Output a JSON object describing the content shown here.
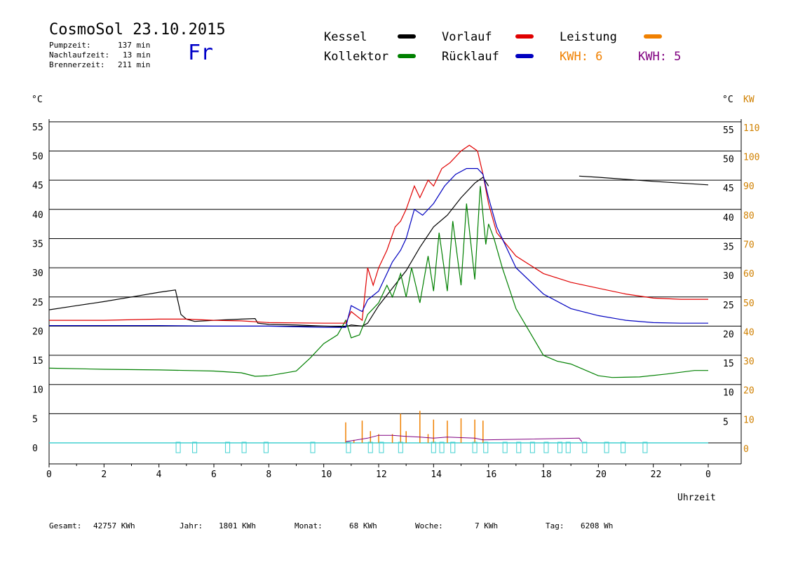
{
  "header": {
    "title": "CosmoSol 23.10.2015",
    "day": "Fr",
    "stats": [
      {
        "label": "Pumpzeit:",
        "value": "137 min"
      },
      {
        "label": "Nachlaufzeit:",
        "value": "13 min"
      },
      {
        "label": "Brennerzeit:",
        "value": "211 min"
      }
    ]
  },
  "legend": {
    "kessel": "Kessel",
    "kollektor": "Kollektor",
    "vorlauf": "Vorlauf",
    "ruecklauf": "Rücklauf",
    "leistung": "Leistung",
    "kwh1": "KWH: 6",
    "kwh2": "KWH: 5"
  },
  "colors": {
    "kessel": "#000000",
    "kollektor": "#008000",
    "vorlauf": "#e00000",
    "ruecklauf": "#0000c0",
    "leistung": "#f08000",
    "kwh2": "#800080",
    "pump": "#40d0d0",
    "grid": "#000000"
  },
  "chart_data": {
    "type": "line",
    "xlabel": "Uhrzeit",
    "left_unit": "°C",
    "right_unit_c": "°C",
    "right_unit_kw": "KW",
    "xlim": [
      0,
      24
    ],
    "ylim": [
      0,
      55
    ],
    "x_ticks": [
      "0",
      "2",
      "4",
      "6",
      "8",
      "10",
      "12",
      "14",
      "16",
      "18",
      "20",
      "22",
      "0"
    ],
    "y_ticks_left": [
      "0",
      "5",
      "10",
      "15",
      "20",
      "25",
      "30",
      "35",
      "40",
      "45",
      "50",
      "55"
    ],
    "y_ticks_right_c": [
      "5",
      "10",
      "15",
      "20",
      "25",
      "30",
      "35",
      "40",
      "45",
      "50",
      "55"
    ],
    "y_ticks_right_kw": [
      "0",
      "10",
      "20",
      "30",
      "40",
      "50",
      "60",
      "70",
      "80",
      "90",
      "100",
      "110"
    ],
    "series": [
      {
        "name": "Kessel",
        "key": "kessel",
        "points": [
          [
            0,
            22.8
          ],
          [
            1,
            23.5
          ],
          [
            2,
            24.2
          ],
          [
            3,
            25
          ],
          [
            4,
            25.8
          ],
          [
            4.6,
            26.2
          ],
          [
            4.8,
            22
          ],
          [
            5,
            21.2
          ],
          [
            5.3,
            20.8
          ],
          [
            6,
            21
          ],
          [
            7,
            21.2
          ],
          [
            7.5,
            21.3
          ],
          [
            7.6,
            20.5
          ],
          [
            8,
            20.3
          ],
          [
            9,
            20.2
          ],
          [
            10,
            20
          ],
          [
            10.8,
            19.9
          ],
          [
            11,
            20.2
          ],
          [
            11.4,
            20
          ],
          [
            11.6,
            20.5
          ],
          [
            12,
            23.5
          ],
          [
            12.5,
            26.5
          ],
          [
            13,
            29.5
          ],
          [
            13.5,
            33.5
          ],
          [
            14,
            37
          ],
          [
            14.5,
            39
          ],
          [
            15,
            42
          ],
          [
            15.5,
            44.5
          ],
          [
            15.8,
            45.5
          ],
          [
            16,
            44
          ],
          [
            16,
            null
          ],
          [
            19.3,
            45.7
          ],
          [
            20,
            45.5
          ],
          [
            22,
            44.8
          ],
          [
            24,
            44.2
          ]
        ]
      },
      {
        "name": "Kollektor",
        "key": "kollektor",
        "points": [
          [
            0,
            12.8
          ],
          [
            2,
            12.6
          ],
          [
            4,
            12.5
          ],
          [
            6,
            12.3
          ],
          [
            7,
            12
          ],
          [
            7.5,
            11.4
          ],
          [
            8,
            11.5
          ],
          [
            9,
            12.3
          ],
          [
            9.5,
            14.5
          ],
          [
            10,
            17
          ],
          [
            10.5,
            18.5
          ],
          [
            10.8,
            21
          ],
          [
            11,
            18
          ],
          [
            11.3,
            18.5
          ],
          [
            11.6,
            22
          ],
          [
            11.8,
            23
          ],
          [
            12,
            24
          ],
          [
            12.3,
            27
          ],
          [
            12.5,
            25
          ],
          [
            12.8,
            29
          ],
          [
            13,
            25
          ],
          [
            13.2,
            30
          ],
          [
            13.5,
            24
          ],
          [
            13.8,
            32
          ],
          [
            14,
            26
          ],
          [
            14.2,
            36
          ],
          [
            14.5,
            26
          ],
          [
            14.7,
            38
          ],
          [
            15,
            27
          ],
          [
            15.2,
            41
          ],
          [
            15.5,
            28
          ],
          [
            15.7,
            44
          ],
          [
            15.9,
            34
          ],
          [
            16,
            37.5
          ],
          [
            16.2,
            35
          ],
          [
            16.5,
            30
          ],
          [
            17,
            23
          ],
          [
            17.5,
            19
          ],
          [
            18,
            15
          ],
          [
            18.5,
            14
          ],
          [
            19,
            13.5
          ],
          [
            20,
            11.5
          ],
          [
            20.5,
            11.2
          ],
          [
            21.5,
            11.3
          ],
          [
            22.5,
            11.8
          ],
          [
            23.5,
            12.4
          ],
          [
            24,
            12.4
          ]
        ]
      },
      {
        "name": "Vorlauf",
        "key": "vorlauf",
        "points": [
          [
            0,
            21
          ],
          [
            2,
            21
          ],
          [
            4,
            21.2
          ],
          [
            5,
            21.2
          ],
          [
            6,
            21
          ],
          [
            7,
            20.9
          ],
          [
            8,
            20.6
          ],
          [
            10,
            20.5
          ],
          [
            10.8,
            20.5
          ],
          [
            11,
            22.5
          ],
          [
            11.4,
            21
          ],
          [
            11.6,
            30
          ],
          [
            11.8,
            27
          ],
          [
            12,
            30
          ],
          [
            12.3,
            33
          ],
          [
            12.6,
            37
          ],
          [
            12.8,
            38
          ],
          [
            13,
            40
          ],
          [
            13.3,
            44
          ],
          [
            13.5,
            42
          ],
          [
            13.8,
            45
          ],
          [
            14,
            44
          ],
          [
            14.3,
            47
          ],
          [
            14.6,
            48
          ],
          [
            15,
            50
          ],
          [
            15.3,
            51
          ],
          [
            15.6,
            50
          ],
          [
            15.8,
            46
          ],
          [
            16,
            41
          ],
          [
            16.3,
            36
          ],
          [
            17,
            32
          ],
          [
            18,
            29
          ],
          [
            19,
            27.5
          ],
          [
            20,
            26.5
          ],
          [
            21,
            25.5
          ],
          [
            22,
            24.8
          ],
          [
            23,
            24.6
          ],
          [
            24,
            24.6
          ]
        ]
      },
      {
        "name": "Rücklauf",
        "key": "ruecklauf",
        "points": [
          [
            0,
            20.1
          ],
          [
            2,
            20.1
          ],
          [
            4,
            20.1
          ],
          [
            6,
            20
          ],
          [
            8,
            20
          ],
          [
            10,
            19.8
          ],
          [
            10.8,
            19.8
          ],
          [
            11,
            23.5
          ],
          [
            11.4,
            22.5
          ],
          [
            11.6,
            24.5
          ],
          [
            12,
            26
          ],
          [
            12.5,
            31
          ],
          [
            12.8,
            33
          ],
          [
            13,
            35
          ],
          [
            13.3,
            40
          ],
          [
            13.6,
            39
          ],
          [
            14,
            41
          ],
          [
            14.4,
            44
          ],
          [
            14.8,
            46
          ],
          [
            15.2,
            47
          ],
          [
            15.6,
            47
          ],
          [
            15.8,
            46
          ],
          [
            16,
            42
          ],
          [
            16.3,
            37
          ],
          [
            17,
            30
          ],
          [
            18,
            25.5
          ],
          [
            19,
            23
          ],
          [
            20,
            21.8
          ],
          [
            21,
            21
          ],
          [
            22,
            20.6
          ],
          [
            23,
            20.5
          ],
          [
            24,
            20.5
          ]
        ]
      }
    ],
    "leistung": [
      [
        10.8,
        3.5
      ],
      [
        11.1,
        0.5
      ],
      [
        11.4,
        3.8
      ],
      [
        11.7,
        2
      ],
      [
        12,
        1.5
      ],
      [
        12.5,
        1.5
      ],
      [
        12.8,
        5
      ],
      [
        13,
        2
      ],
      [
        13.5,
        5.5
      ],
      [
        13.8,
        1.5
      ],
      [
        14,
        4
      ],
      [
        14.5,
        3.8
      ],
      [
        15,
        4.2
      ],
      [
        15.5,
        4
      ],
      [
        15.8,
        3.8
      ]
    ],
    "kwh2_line": [
      [
        10.8,
        0.2
      ],
      [
        11.6,
        0.8
      ],
      [
        12,
        1.3
      ],
      [
        12.5,
        1.3
      ],
      [
        13,
        1.1
      ],
      [
        13.5,
        1
      ],
      [
        14,
        0.8
      ],
      [
        14.5,
        1
      ],
      [
        15,
        0.9
      ],
      [
        15.5,
        0.8
      ],
      [
        15.8,
        0.5
      ],
      [
        19.3,
        0.8
      ],
      [
        19.4,
        0.2
      ]
    ],
    "pump_markers": [
      4.7,
      5.3,
      6.5,
      7.1,
      7.9,
      9.6,
      10.9,
      11.7,
      12.1,
      12.8,
      14,
      14.3,
      14.7,
      15.5,
      15.9,
      16.6,
      17.1,
      17.6,
      18.1,
      18.6,
      18.9,
      19.5,
      20.3,
      20.9,
      21.7
    ]
  },
  "footer": [
    {
      "label": "Gesamt:",
      "value": "42757 KWh"
    },
    {
      "label": "Jahr:",
      "value": "1801 KWh"
    },
    {
      "label": "Monat:",
      "value": "68 KWh"
    },
    {
      "label": "Woche:",
      "value": "7 KWh"
    },
    {
      "label": "Tag:",
      "value": "6208 Wh"
    }
  ]
}
